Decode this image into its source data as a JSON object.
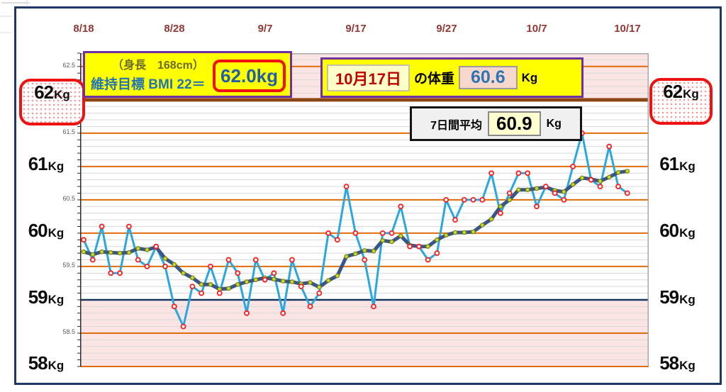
{
  "top_axis": {
    "labels": [
      "8/18",
      "8/28",
      "9/7",
      "9/17",
      "9/27",
      "10/7",
      "10/17"
    ],
    "label_color": "#943634",
    "tick_indices": [
      0,
      10,
      20,
      30,
      40,
      50,
      60
    ]
  },
  "y_labels": {
    "values": [
      {
        "num": "62",
        "unit": "Kg"
      },
      {
        "num": "61",
        "unit": "Kg"
      },
      {
        "num": "60",
        "unit": "Kg"
      },
      {
        "num": "59",
        "unit": "Kg"
      },
      {
        "num": "58",
        "unit": "Kg"
      }
    ],
    "minor_labels": [
      "62.5",
      "61.5",
      "60.5",
      "59.5",
      "58.5"
    ],
    "highlight_value": "62Kg",
    "highlight_color": "#EE1313"
  },
  "annotations": {
    "target": {
      "line1": "（身長　168cm）",
      "line2": "維持目標 BMI 22＝",
      "value": "62.0kg",
      "value_color": "#1F5FA8",
      "box_color": "#FFFF00",
      "border_color": "#7030A0"
    },
    "today": {
      "date": "10月17日",
      "label": "の体重",
      "value": "60.6",
      "unit": "Kg",
      "date_color": "#C00000",
      "value_color": "#2E75B6"
    },
    "average": {
      "label": "7日間平均",
      "value": "60.9",
      "unit": "Kg"
    }
  },
  "chart_data": {
    "type": "line",
    "x_dates": [
      "8/18",
      "8/19",
      "8/20",
      "8/21",
      "8/22",
      "8/23",
      "8/24",
      "8/25",
      "8/26",
      "8/27",
      "8/28",
      "8/29",
      "8/30",
      "8/31",
      "9/1",
      "9/2",
      "9/3",
      "9/4",
      "9/5",
      "9/6",
      "9/7",
      "9/8",
      "9/9",
      "9/10",
      "9/11",
      "9/12",
      "9/13",
      "9/14",
      "9/15",
      "9/16",
      "9/17",
      "9/18",
      "9/19",
      "9/20",
      "9/21",
      "9/22",
      "9/23",
      "9/24",
      "9/25",
      "9/26",
      "9/27",
      "9/28",
      "9/29",
      "9/30",
      "10/1",
      "10/2",
      "10/3",
      "10/4",
      "10/5",
      "10/6",
      "10/7",
      "10/8",
      "10/9",
      "10/10",
      "10/11",
      "10/12",
      "10/13",
      "10/14",
      "10/15",
      "10/16",
      "10/17"
    ],
    "ylabel": "Kg",
    "ylim": [
      58.0,
      62.7
    ],
    "grid": true,
    "legend": "none",
    "series": [
      {
        "name": "daily-weight",
        "color": "#2BA7E0",
        "width": 3,
        "marker": {
          "fill": "#FFFFFF",
          "stroke": "#FF1A1A",
          "r": 3,
          "sw": 1.8
        },
        "values": [
          59.9,
          59.6,
          60.1,
          59.4,
          59.4,
          60.1,
          59.6,
          59.5,
          59.8,
          59.5,
          58.9,
          58.6,
          59.2,
          59.1,
          59.5,
          59.1,
          59.6,
          59.4,
          58.8,
          59.6,
          59.3,
          59.4,
          58.8,
          59.6,
          59.2,
          58.9,
          59.1,
          60.0,
          59.9,
          60.7,
          60.0,
          59.6,
          58.9,
          60.0,
          60.0,
          60.4,
          59.8,
          59.8,
          59.6,
          59.7,
          60.5,
          60.2,
          60.5,
          60.5,
          60.5,
          60.9,
          60.3,
          60.6,
          60.9,
          60.9,
          60.4,
          60.7,
          60.6,
          60.5,
          61.0,
          61.5,
          60.8,
          60.7,
          61.3,
          60.7,
          60.6
        ]
      },
      {
        "name": "seven-day-average",
        "color": "#3A5588",
        "width": 5,
        "marker": {
          "fill": "#CEDB29",
          "stroke": "#77850A",
          "r": 2.7,
          "sw": 1.2
        },
        "values": [
          59.72,
          59.68,
          59.72,
          59.71,
          59.7,
          59.71,
          59.77,
          59.75,
          59.79,
          59.62,
          59.53,
          59.4,
          59.33,
          59.23,
          59.23,
          59.16,
          59.17,
          59.23,
          59.27,
          59.3,
          59.33,
          59.31,
          59.28,
          59.27,
          59.24,
          59.26,
          59.19,
          59.29,
          59.36,
          59.65,
          59.69,
          59.74,
          59.73,
          59.89,
          59.87,
          59.96,
          59.82,
          59.8,
          59.8,
          59.9,
          59.97,
          60.01,
          60.01,
          60.02,
          60.12,
          60.21,
          60.4,
          60.5,
          60.65,
          60.65,
          60.67,
          60.69,
          60.64,
          60.62,
          60.73,
          60.83,
          60.81,
          60.78,
          60.84,
          60.91,
          60.93
        ]
      }
    ],
    "gridlines": {
      "minor_step": 0.1,
      "minor_color": "#D9D9D9",
      "orange_values": [
        58.0,
        58.5,
        59.5,
        60.0,
        60.5,
        61.0,
        61.5,
        62.5
      ],
      "orange_color": "#E26B0A",
      "target_line": {
        "value": 62.0,
        "color": "#8C4515",
        "width": 5
      },
      "floor_line": {
        "value": 59.0,
        "color": "#17375E",
        "width": 2.5
      },
      "bands": [
        {
          "from": 62.0,
          "to": 62.7,
          "color": "#FBE5E4"
        },
        {
          "from": 58.0,
          "to": 59.0,
          "color": "#FBE5E4"
        }
      ]
    }
  }
}
